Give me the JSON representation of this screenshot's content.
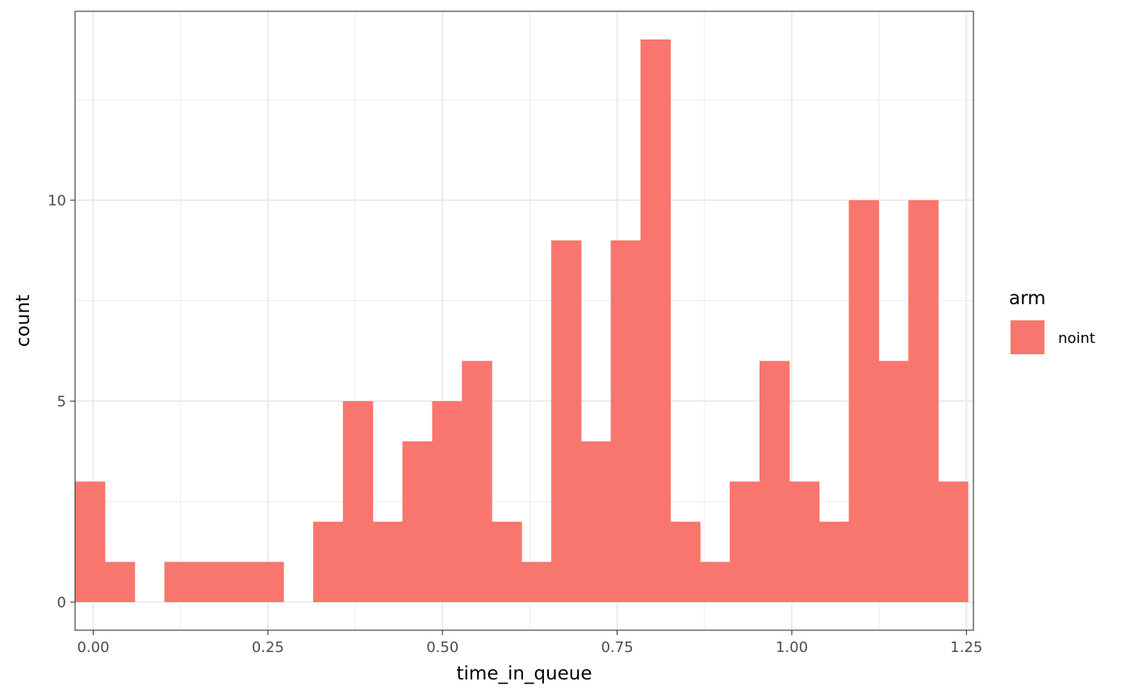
{
  "chart_data": {
    "type": "bar",
    "subtype": "histogram",
    "xlabel": "time_in_queue",
    "ylabel": "count",
    "xlim": [
      -0.026,
      1.26
    ],
    "ylim": [
      -0.7,
      14.7
    ],
    "x_ticks": [
      0.0,
      0.25,
      0.5,
      0.75,
      1.0,
      1.25
    ],
    "x_tick_labels": [
      "0.00",
      "0.25",
      "0.50",
      "0.75",
      "1.00",
      "1.25"
    ],
    "y_ticks": [
      0,
      5,
      10
    ],
    "y_tick_labels": [
      "0",
      "5",
      "10"
    ],
    "grid": true,
    "legend_position": "right",
    "legend": {
      "title": "arm",
      "entries": [
        {
          "label": "noint",
          "color": "#F8766D"
        }
      ]
    },
    "series": [
      {
        "name": "noint",
        "color": "#F8766D",
        "bin_start": -0.026,
        "bin_width": 0.0426,
        "counts": [
          3,
          1,
          0,
          1,
          1,
          1,
          1,
          0,
          2,
          5,
          2,
          4,
          5,
          6,
          2,
          1,
          9,
          4,
          9,
          14,
          2,
          1,
          3,
          6,
          3,
          2,
          10,
          6,
          10,
          3
        ]
      }
    ]
  }
}
